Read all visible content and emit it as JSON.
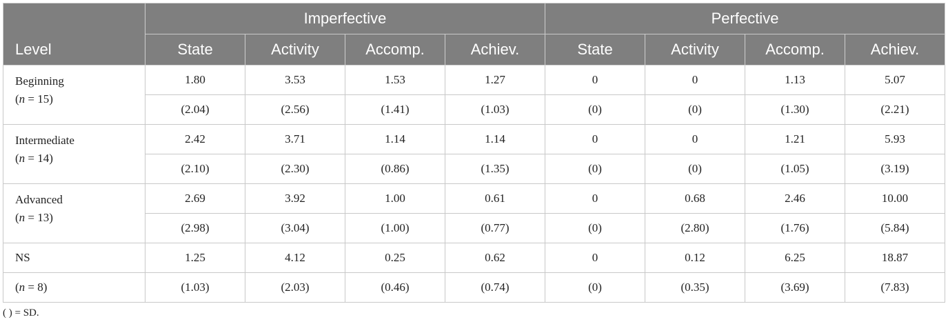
{
  "header": {
    "level_label": "Level",
    "groups": [
      "Imperfective",
      "Perfective"
    ],
    "subcolumns": [
      "State",
      "Activity",
      "Accomp.",
      "Achiev.",
      "State",
      "Activity",
      "Accomp.",
      "Achiev."
    ]
  },
  "rows": [
    {
      "level": "Beginning",
      "n_label": "(n = 15)",
      "n_var": "n",
      "n_rest": " = 15)",
      "means": [
        "1.80",
        "3.53",
        "1.53",
        "1.27",
        "0",
        "0",
        "1.13",
        "5.07"
      ],
      "sds": [
        "(2.04)",
        "(2.56)",
        "(1.41)",
        "(1.03)",
        "(0)",
        "(0)",
        "(1.30)",
        "(2.21)"
      ]
    },
    {
      "level": "Intermediate",
      "n_label": "(n = 14)",
      "n_var": "n",
      "n_rest": " = 14)",
      "means": [
        "2.42",
        "3.71",
        "1.14",
        "1.14",
        "0",
        "0",
        "1.21",
        "5.93"
      ],
      "sds": [
        "(2.10)",
        "(2.30)",
        "(0.86)",
        "(1.35)",
        "(0)",
        "(0)",
        "(1.05)",
        "(3.19)"
      ]
    },
    {
      "level": "Advanced",
      "n_label": "(n = 13)",
      "n_var": "n",
      "n_rest": " = 13)",
      "means": [
        "2.69",
        "3.92",
        "1.00",
        "0.61",
        "0",
        "0.68",
        "2.46",
        "10.00"
      ],
      "sds": [
        "(2.98)",
        "(3.04)",
        "(1.00)",
        "(0.77)",
        "(0)",
        "(2.80)",
        "(1.76)",
        "(5.84)"
      ]
    },
    {
      "level": "NS",
      "n_label": "(n = 8)",
      "n_var": "n",
      "n_rest": " = 8)",
      "means": [
        "1.25",
        "4.12",
        "0.25",
        "0.62",
        "0",
        "0.12",
        "6.25",
        "18.87"
      ],
      "sds": [
        "(1.03)",
        "(2.03)",
        "(0.46)",
        "(0.74)",
        "(0)",
        "(0.35)",
        "(3.69)",
        "(7.83)"
      ]
    }
  ],
  "footnote": "( ) = SD.",
  "colors": {
    "header_bg": "#7f7f7f",
    "header_text": "#ffffff",
    "border": "#c8c8c8"
  }
}
